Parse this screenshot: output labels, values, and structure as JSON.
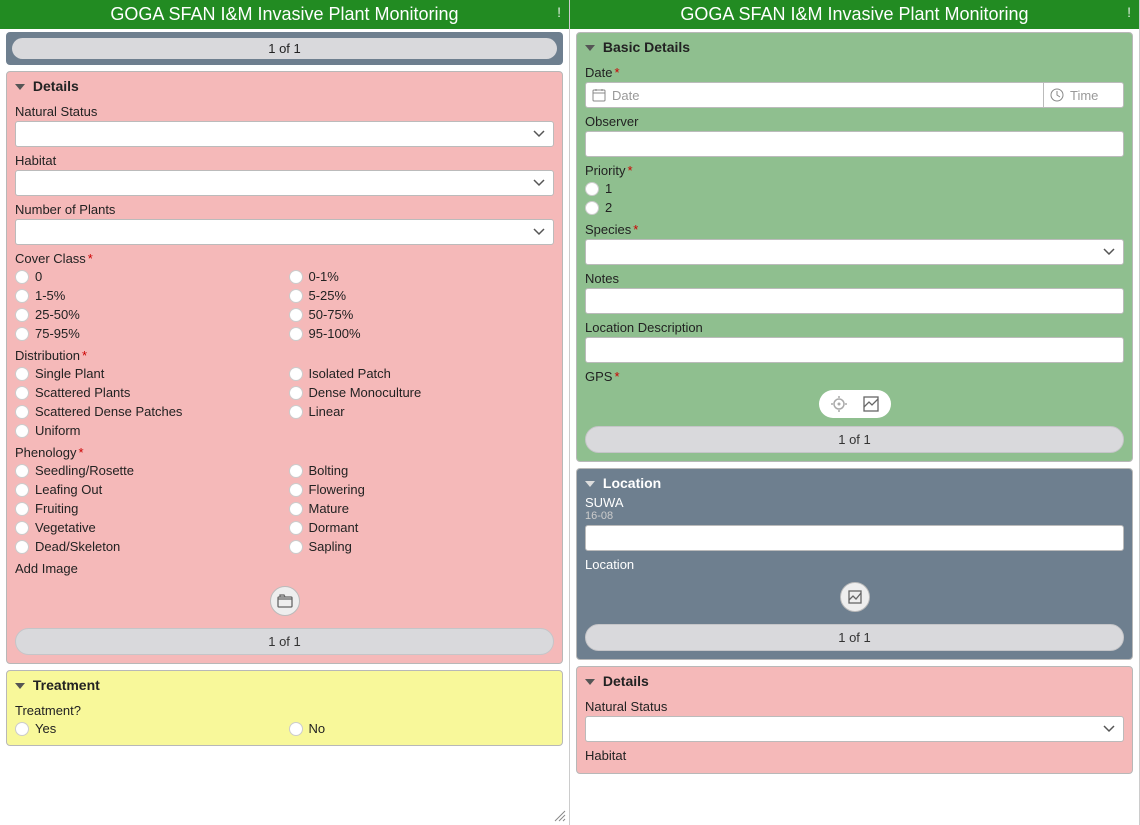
{
  "app": {
    "title": "GOGA SFAN I&M Invasive Plant Monitoring",
    "alert_icon": "!"
  },
  "colors": {
    "header_bg": "#228b22",
    "details_bg": "#f5b9b9",
    "treatment_bg": "#f8f89a",
    "basic_bg": "#8fbf8f",
    "location_bg": "#6e7f8f",
    "required": "#c00"
  },
  "left": {
    "top_paginator": "1 of 1",
    "details": {
      "title": "Details",
      "natural_status_label": "Natural Status",
      "habitat_label": "Habitat",
      "num_plants_label": "Number of Plants",
      "cover_class": {
        "label": "Cover Class",
        "required": true,
        "options_col1": [
          "0",
          "1-5%",
          "25-50%",
          "75-95%"
        ],
        "options_col2": [
          "0-1%",
          "5-25%",
          "50-75%",
          "95-100%"
        ]
      },
      "distribution": {
        "label": "Distribution",
        "required": true,
        "options_col1": [
          "Single Plant",
          "Scattered Plants",
          "Scattered Dense Patches",
          "Uniform"
        ],
        "options_col2": [
          "Isolated Patch",
          "Dense Monoculture",
          "Linear"
        ]
      },
      "phenology": {
        "label": "Phenology",
        "required": true,
        "options_col1": [
          "Seedling/Rosette",
          "Leafing Out",
          "Fruiting",
          "Vegetative",
          "Dead/Skeleton"
        ],
        "options_col2": [
          "Bolting",
          "Flowering",
          "Mature",
          "Dormant",
          "Sapling"
        ]
      },
      "add_image_label": "Add Image",
      "paginator": "1 of 1"
    },
    "treatment": {
      "title": "Treatment",
      "question_label": "Treatment?",
      "yes": "Yes",
      "no": "No"
    }
  },
  "right": {
    "basic": {
      "title": "Basic Details",
      "date_label": "Date",
      "date_placeholder": "Date",
      "time_placeholder": "Time",
      "observer_label": "Observer",
      "priority": {
        "label": "Priority",
        "required": true,
        "options": [
          "1",
          "2"
        ]
      },
      "species_label": "Species",
      "species_required": true,
      "notes_label": "Notes",
      "loc_desc_label": "Location Description",
      "gps_label": "GPS",
      "gps_required": true,
      "paginator": "1 of 1"
    },
    "location": {
      "title": "Location",
      "suwa": "SUWA",
      "sub": "16-08",
      "loc_label": "Location",
      "paginator": "1 of 1"
    },
    "details2": {
      "title": "Details",
      "natural_status_label": "Natural Status",
      "habitat_label": "Habitat"
    }
  }
}
